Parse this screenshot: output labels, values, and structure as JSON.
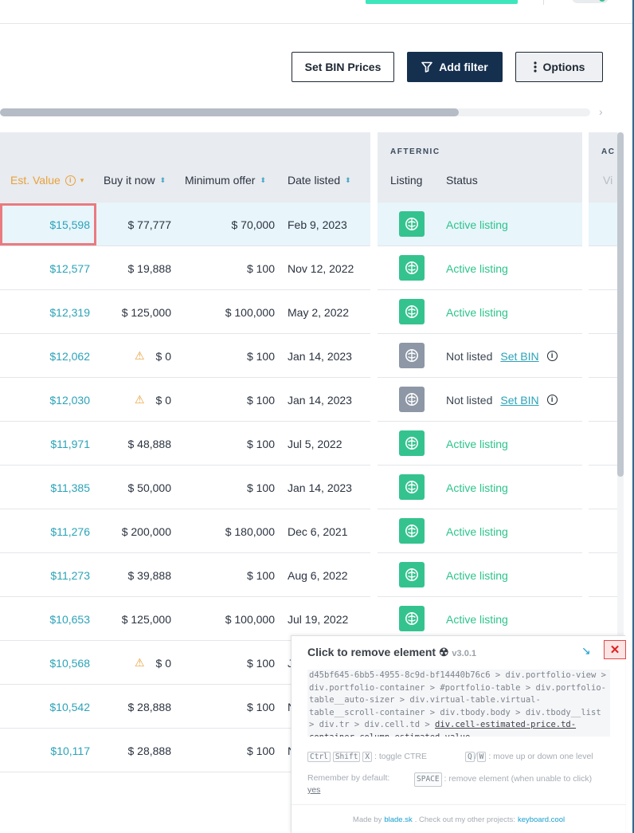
{
  "toolbar": {
    "set_bin_label": "Set BIN Prices",
    "add_filter_label": "Add filter",
    "options_label": "Options"
  },
  "table": {
    "group_label": "AFTERNIC",
    "group_label_next": "AC",
    "columns": {
      "est_value": "Est. Value",
      "buy_now": "Buy it now",
      "min_offer": "Minimum offer",
      "date_listed": "Date listed",
      "listing": "Listing",
      "status": "Status",
      "next_partial": "Vi"
    },
    "rows": [
      {
        "est": "$15,598",
        "buy": "$ 77,777",
        "min": "$ 70,000",
        "date": "Feb 9, 2023",
        "status": "Active listing"
      },
      {
        "est": "$12,577",
        "buy": "$ 19,888",
        "min": "$ 100",
        "date": "Nov 12, 2022",
        "status": "Active listing"
      },
      {
        "est": "$12,319",
        "buy": "$ 125,000",
        "min": "$ 100,000",
        "date": "May 2, 2022",
        "status": "Active listing"
      },
      {
        "est": "$12,062",
        "buy": "$ 0",
        "min": "$ 100",
        "date": "Jan 14, 2023",
        "status": "Not listed",
        "link": "Set BIN"
      },
      {
        "est": "$12,030",
        "buy": "$ 0",
        "min": "$ 100",
        "date": "Jan 14, 2023",
        "status": "Not listed",
        "link": "Set BIN"
      },
      {
        "est": "$11,971",
        "buy": "$ 48,888",
        "min": "$ 100",
        "date": "Jul 5, 2022",
        "status": "Active listing"
      },
      {
        "est": "$11,385",
        "buy": "$ 50,000",
        "min": "$ 100",
        "date": "Jan 14, 2023",
        "status": "Active listing"
      },
      {
        "est": "$11,276",
        "buy": "$ 200,000",
        "min": "$ 180,000",
        "date": "Dec 6, 2021",
        "status": "Active listing"
      },
      {
        "est": "$11,273",
        "buy": "$ 39,888",
        "min": "$ 100",
        "date": "Aug 6, 2022",
        "status": "Active listing"
      },
      {
        "est": "$10,653",
        "buy": "$ 125,000",
        "min": "$ 100,000",
        "date": "Jul 19, 2022",
        "status": "Active listing"
      },
      {
        "est": "$10,568",
        "buy": "$ 0",
        "min": "$ 100",
        "date": "J"
      },
      {
        "est": "$10,542",
        "buy": "$ 28,888",
        "min": "$ 100",
        "date": "N"
      },
      {
        "est": "$10,117",
        "buy": "$ 28,888",
        "min": "$ 100",
        "date": "N"
      }
    ]
  },
  "ctre": {
    "title": "Click to remove element",
    "version": "v3.0.1",
    "path_text": "d45bf645-6bb5-4955-8c9d-bf14440b76c6 > div.portfolio-view > div.portfolio-container > #portfolio-table > div.portfolio-table__auto-sizer > div.virtual-table.virtual-table__scroll-container > div.tbody.body > div.tbody__list > div.tr > div.cell.td > ",
    "path_last": "div.cell-estimated-price.td-container.column-estimated_value",
    "toggle_text": ": toggle CTRE",
    "move_text": ": move up or down one level",
    "remember_text": "Remember by default:",
    "remember_value": "yes",
    "space_text": ": remove element (when unable to click)",
    "footer_made_by": "Made by",
    "footer_author": "blade.sk",
    "footer_mid": ". Check out my other projects:",
    "footer_project": "keyboard.cool",
    "keys": {
      "ctrl": "Ctrl",
      "shift": "Shift",
      "x": "X",
      "q": "Q",
      "w": "W",
      "space": "SPACE"
    }
  },
  "colors": {
    "accent_teal": "#2ba3b8",
    "active_green": "#34c38f",
    "warning_orange": "#e8a13b",
    "primary_navy": "#15304f",
    "selection_red": "#ea7a80"
  }
}
